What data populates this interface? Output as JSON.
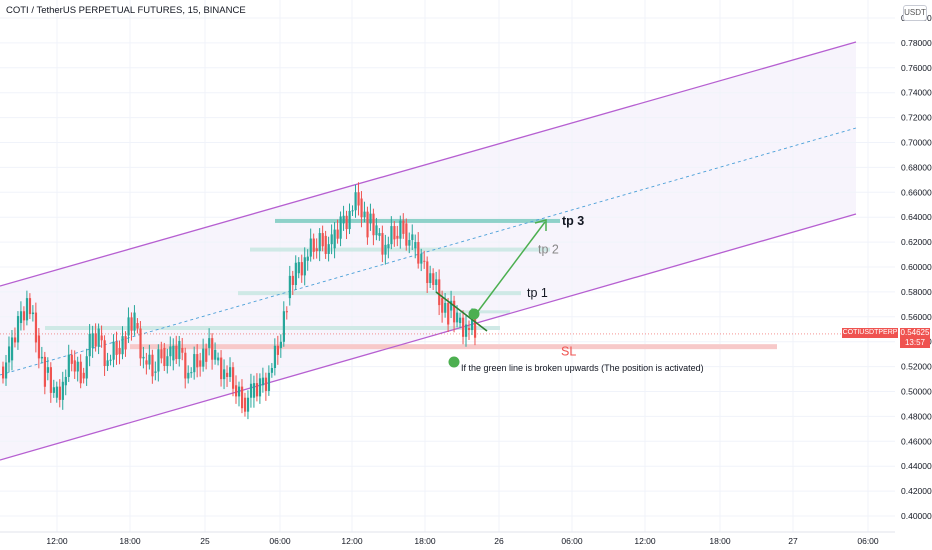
{
  "header": {
    "title": "COTI / TetherUS PERPETUAL FUTURES, 15, BINANCE",
    "currency_badge": "USDT"
  },
  "price_label": {
    "symbol": "COTIUSDTPERP",
    "price": "0.54625",
    "countdown": "13:57"
  },
  "colors": {
    "up": "#26a69a",
    "down": "#ef5350",
    "channel": "#b65fd1",
    "midline": "#4a9fd8",
    "tp_band": "#8ed1c9",
    "sl_band": "#f7c9c9",
    "arrow": "#4caf50",
    "dot": "#4caf50"
  },
  "chart_data": {
    "type": "candlestick",
    "title": "COTI / TetherUS PERPETUAL FUTURES, 15, BINANCE",
    "ylim": [
      0.39,
      0.8
    ],
    "y_ticks": [
      "0.80000",
      "0.78000",
      "0.76000",
      "0.74000",
      "0.72000",
      "0.70000",
      "0.68000",
      "0.66000",
      "0.64000",
      "0.62000",
      "0.60000",
      "0.58000",
      "0.56000",
      "0.54000",
      "0.52000",
      "0.50000",
      "0.48000",
      "0.46000",
      "0.44000",
      "0.42000",
      "0.40000"
    ],
    "x_ticks": [
      "12:00",
      "18:00",
      "25",
      "06:00",
      "12:00",
      "18:00",
      "26",
      "06:00",
      "12:00",
      "18:00",
      "27",
      "06:00"
    ],
    "current_price": 0.54625,
    "levels": [
      {
        "label": "tp 3",
        "price": 0.637
      },
      {
        "label": "tp 2",
        "price": 0.614
      },
      {
        "label": "tp 1",
        "price": 0.579
      },
      {
        "label": "",
        "price": 0.551
      },
      {
        "label": "SL",
        "price": 0.536
      }
    ],
    "annotation": "If the green line is broken upwards (The position is activated)",
    "close_series": [
      0.525,
      0.555,
      0.575,
      0.545,
      0.515,
      0.495,
      0.505,
      0.525,
      0.515,
      0.535,
      0.545,
      0.525,
      0.535,
      0.545,
      0.555,
      0.525,
      0.515,
      0.535,
      0.525,
      0.535,
      0.515,
      0.525,
      0.535,
      0.525,
      0.515,
      0.505,
      0.495,
      0.495,
      0.505,
      0.515,
      0.535,
      0.575,
      0.595,
      0.605,
      0.615,
      0.625,
      0.615,
      0.635,
      0.645,
      0.655,
      0.635,
      0.625,
      0.615,
      0.625,
      0.635,
      0.615,
      0.605,
      0.595,
      0.575,
      0.565,
      0.555,
      0.551,
      0.546
    ]
  }
}
